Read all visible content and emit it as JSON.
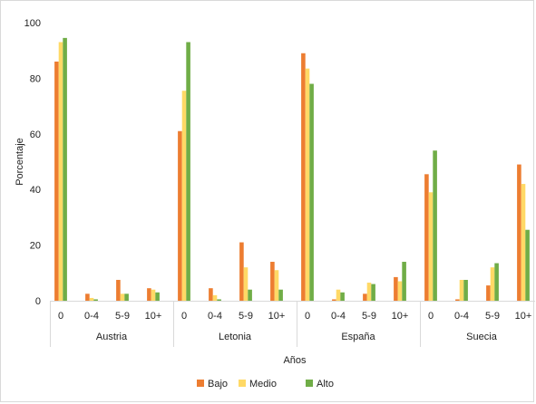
{
  "chart_data": {
    "type": "bar",
    "title": "",
    "xlabel": "Años",
    "ylabel": "Porcentaje",
    "ylim": [
      0,
      100
    ],
    "yticks": [
      0,
      20,
      40,
      60,
      80,
      100
    ],
    "grid": false,
    "legend_position": "bottom",
    "groups": [
      "Austria",
      "Letonia",
      "España",
      "Suecia"
    ],
    "categories": [
      "0",
      "0-4",
      "5-9",
      "10+"
    ],
    "series": [
      {
        "name": "Bajo",
        "color": "#ED7D31",
        "values": [
          [
            86,
            2.5,
            7.5,
            4.5
          ],
          [
            61,
            4.5,
            21,
            14
          ],
          [
            89,
            0.5,
            2.5,
            8.5
          ],
          [
            45.5,
            0.5,
            5.5,
            49
          ]
        ]
      },
      {
        "name": "Medio",
        "color": "#FFD966",
        "values": [
          [
            93,
            1,
            2.5,
            4
          ],
          [
            75.5,
            2,
            12,
            11
          ],
          [
            83.5,
            4,
            6.5,
            7
          ],
          [
            39,
            7.5,
            12,
            42
          ]
        ]
      },
      {
        "name": "Alto",
        "color": "#70AD47",
        "values": [
          [
            94.5,
            0.5,
            2.5,
            3
          ],
          [
            93,
            0.5,
            4,
            4
          ],
          [
            78,
            3,
            6,
            14
          ],
          [
            54,
            7.5,
            13.5,
            25.5
          ]
        ]
      }
    ]
  }
}
